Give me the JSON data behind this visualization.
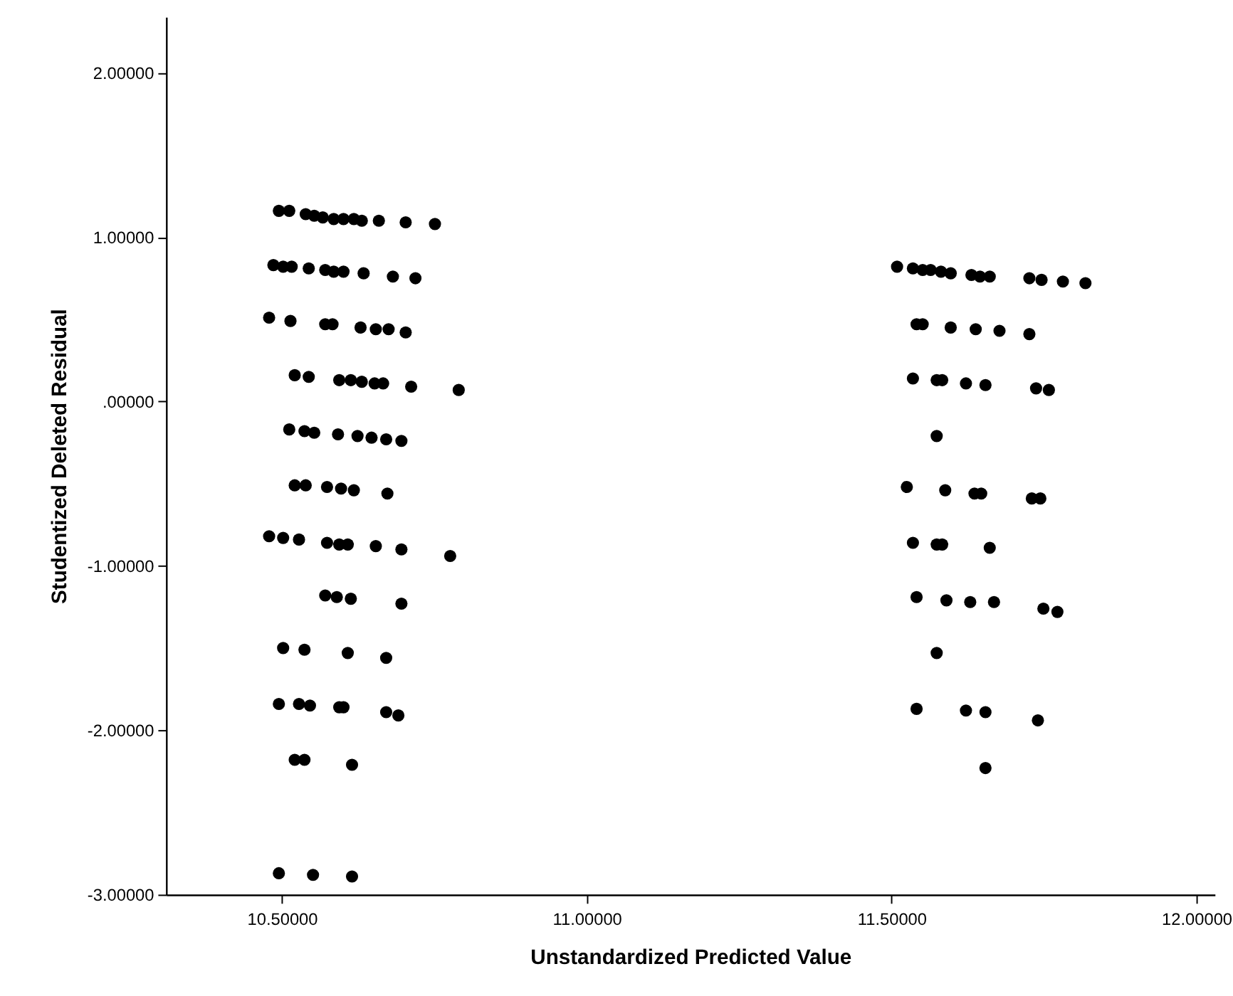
{
  "chart_data": {
    "type": "scatter",
    "xlabel": "Unstandardized Predicted Value",
    "ylabel": "Studentized Deleted Residual",
    "xlim": [
      10.31,
      12.03
    ],
    "ylim": [
      -3.0,
      2.34
    ],
    "xticks": [
      {
        "value": 10.5,
        "label": "10.50000"
      },
      {
        "value": 11.0,
        "label": "11.00000"
      },
      {
        "value": 11.5,
        "label": "11.50000"
      },
      {
        "value": 12.0,
        "label": "12.00000"
      }
    ],
    "yticks": [
      {
        "value": -3,
        "label": "-3.00000"
      },
      {
        "value": -2,
        "label": "-2.00000"
      },
      {
        "value": -1,
        "label": "-1.00000"
      },
      {
        "value": 0,
        "label": ".00000"
      },
      {
        "value": 1,
        "label": "1.00000"
      },
      {
        "value": 2,
        "label": "2.00000"
      }
    ],
    "grid": false,
    "marker": "circle",
    "series": [
      {
        "color": "#000000",
        "x": [
          10.495,
          10.512,
          10.539,
          10.553,
          10.567,
          10.585,
          10.601,
          10.618,
          10.631,
          10.659,
          10.703,
          10.751,
          10.486,
          10.502,
          10.516,
          10.544,
          10.571,
          10.585,
          10.601,
          10.634,
          10.682,
          10.719,
          10.479,
          10.514,
          10.571,
          10.583,
          10.629,
          10.654,
          10.675,
          10.703,
          10.521,
          10.544,
          10.594,
          10.613,
          10.631,
          10.652,
          10.666,
          10.712,
          10.79,
          10.512,
          10.537,
          10.553,
          10.592,
          10.624,
          10.647,
          10.671,
          10.696,
          10.521,
          10.539,
          10.574,
          10.597,
          10.618,
          10.673,
          10.479,
          10.502,
          10.528,
          10.574,
          10.594,
          10.608,
          10.654,
          10.696,
          10.776,
          10.571,
          10.59,
          10.613,
          10.696,
          10.502,
          10.537,
          10.608,
          10.671,
          10.495,
          10.528,
          10.546,
          10.594,
          10.601,
          10.671,
          10.691,
          10.521,
          10.537,
          10.615,
          10.495,
          10.551,
          10.615,
          11.509,
          11.535,
          11.551,
          11.564,
          11.581,
          11.597,
          11.631,
          11.645,
          11.661,
          11.726,
          11.746,
          11.781,
          11.818,
          11.541,
          11.551,
          11.597,
          11.638,
          11.677,
          11.726,
          11.535,
          11.574,
          11.583,
          11.622,
          11.654,
          11.737,
          11.758,
          11.574,
          11.525,
          11.588,
          11.636,
          11.647,
          11.73,
          11.744,
          11.535,
          11.574,
          11.583,
          11.661,
          11.541,
          11.59,
          11.629,
          11.668,
          11.749,
          11.772,
          11.574,
          11.541,
          11.622,
          11.654,
          11.74,
          11.654
        ],
        "values": [
          1.16,
          1.16,
          1.14,
          1.13,
          1.12,
          1.11,
          1.11,
          1.11,
          1.1,
          1.1,
          1.09,
          1.08,
          0.83,
          0.82,
          0.82,
          0.81,
          0.8,
          0.79,
          0.79,
          0.78,
          0.76,
          0.75,
          0.51,
          0.49,
          0.47,
          0.47,
          0.45,
          0.44,
          0.44,
          0.42,
          0.16,
          0.15,
          0.13,
          0.13,
          0.12,
          0.11,
          0.11,
          0.09,
          0.07,
          -0.17,
          -0.18,
          -0.19,
          -0.2,
          -0.21,
          -0.22,
          -0.23,
          -0.24,
          -0.51,
          -0.51,
          -0.52,
          -0.53,
          -0.54,
          -0.56,
          -0.82,
          -0.83,
          -0.84,
          -0.86,
          -0.87,
          -0.87,
          -0.88,
          -0.9,
          -0.94,
          -1.18,
          -1.19,
          -1.2,
          -1.23,
          -1.5,
          -1.51,
          -1.53,
          -1.56,
          -1.84,
          -1.84,
          -1.85,
          -1.86,
          -1.86,
          -1.89,
          -1.91,
          -2.18,
          -2.18,
          -2.21,
          -2.87,
          -2.88,
          -2.89,
          0.82,
          0.81,
          0.8,
          0.8,
          0.79,
          0.78,
          0.77,
          0.76,
          0.76,
          0.75,
          0.74,
          0.73,
          0.72,
          0.47,
          0.47,
          0.45,
          0.44,
          0.43,
          0.41,
          0.14,
          0.13,
          0.13,
          0.11,
          0.1,
          0.08,
          0.07,
          -0.21,
          -0.52,
          -0.54,
          -0.56,
          -0.56,
          -0.59,
          -0.59,
          -0.86,
          -0.87,
          -0.87,
          -0.89,
          -1.19,
          -1.21,
          -1.22,
          -1.22,
          -1.26,
          -1.28,
          -1.53,
          -1.87,
          -1.88,
          -1.89,
          -1.94,
          -2.23
        ]
      }
    ]
  }
}
